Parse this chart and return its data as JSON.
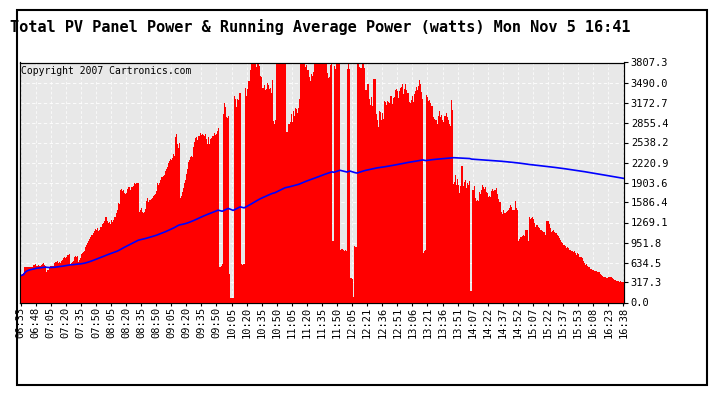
{
  "title": "Total PV Panel Power & Running Average Power (watts) Mon Nov 5 16:41",
  "copyright": "Copyright 2007 Cartronics.com",
  "ylabel_right_ticks": [
    0.0,
    317.3,
    634.5,
    951.8,
    1269.1,
    1586.4,
    1903.6,
    2220.9,
    2538.2,
    2855.4,
    3172.7,
    3490.0,
    3807.3
  ],
  "ylim": [
    0,
    3807.3
  ],
  "bar_color": "#FF0000",
  "line_color": "#0000FF",
  "background_color": "#FFFFFF",
  "plot_bg_color": "#E8E8E8",
  "grid_color": "#C8C8C8",
  "x_labels": [
    "06:33",
    "06:48",
    "07:05",
    "07:20",
    "07:35",
    "07:50",
    "08:05",
    "08:20",
    "08:35",
    "08:50",
    "09:05",
    "09:20",
    "09:35",
    "09:50",
    "10:05",
    "10:20",
    "10:35",
    "10:50",
    "11:05",
    "11:20",
    "11:35",
    "11:50",
    "12:05",
    "12:21",
    "12:36",
    "12:51",
    "13:06",
    "13:21",
    "13:36",
    "13:51",
    "14:07",
    "14:22",
    "14:37",
    "14:52",
    "15:07",
    "15:22",
    "15:37",
    "15:53",
    "16:08",
    "16:23",
    "16:38"
  ],
  "title_fontsize": 11,
  "tick_fontsize": 7.5,
  "copyright_fontsize": 7
}
